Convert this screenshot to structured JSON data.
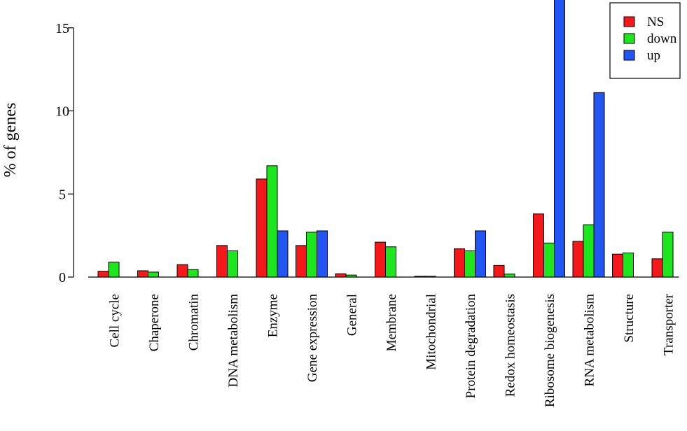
{
  "chart_data": {
    "type": "bar",
    "ylabel": "% of genes",
    "xlabel": "",
    "title": "",
    "ylim": [
      0,
      16.7
    ],
    "yticks": [
      0,
      5,
      10,
      15
    ],
    "categories": [
      "Cell cycle",
      "Chaperone",
      "Chromatin",
      "DNA metabolism",
      "Enzyme",
      "Gene expression",
      "General",
      "Membrane",
      "Mitochondrial",
      "Protein degradation",
      "Redox homeostasis",
      "Ribosome biogenesis",
      "RNA metabolism",
      "Structure",
      "Transporter"
    ],
    "series": [
      {
        "name": "NS",
        "color": "#f5181b",
        "values": [
          0.35,
          0.38,
          0.75,
          1.9,
          5.9,
          1.9,
          0.2,
          2.1,
          0.05,
          1.7,
          0.7,
          3.8,
          2.15,
          1.38,
          1.1
        ]
      },
      {
        "name": "down",
        "color": "#1ee61e",
        "values": [
          0.9,
          0.3,
          0.45,
          1.58,
          6.7,
          2.7,
          0.12,
          1.82,
          0.05,
          1.58,
          0.18,
          2.05,
          3.15,
          1.45,
          2.7
        ]
      },
      {
        "name": "up",
        "color": "#2256f2",
        "values": [
          0,
          0,
          0,
          0,
          2.78,
          2.78,
          0,
          0,
          0,
          2.78,
          0,
          16.7,
          11.1,
          0,
          0
        ]
      }
    ],
    "legend": {
      "position": "top-right",
      "entries": [
        "NS",
        "down",
        "up"
      ]
    },
    "grid": false
  }
}
